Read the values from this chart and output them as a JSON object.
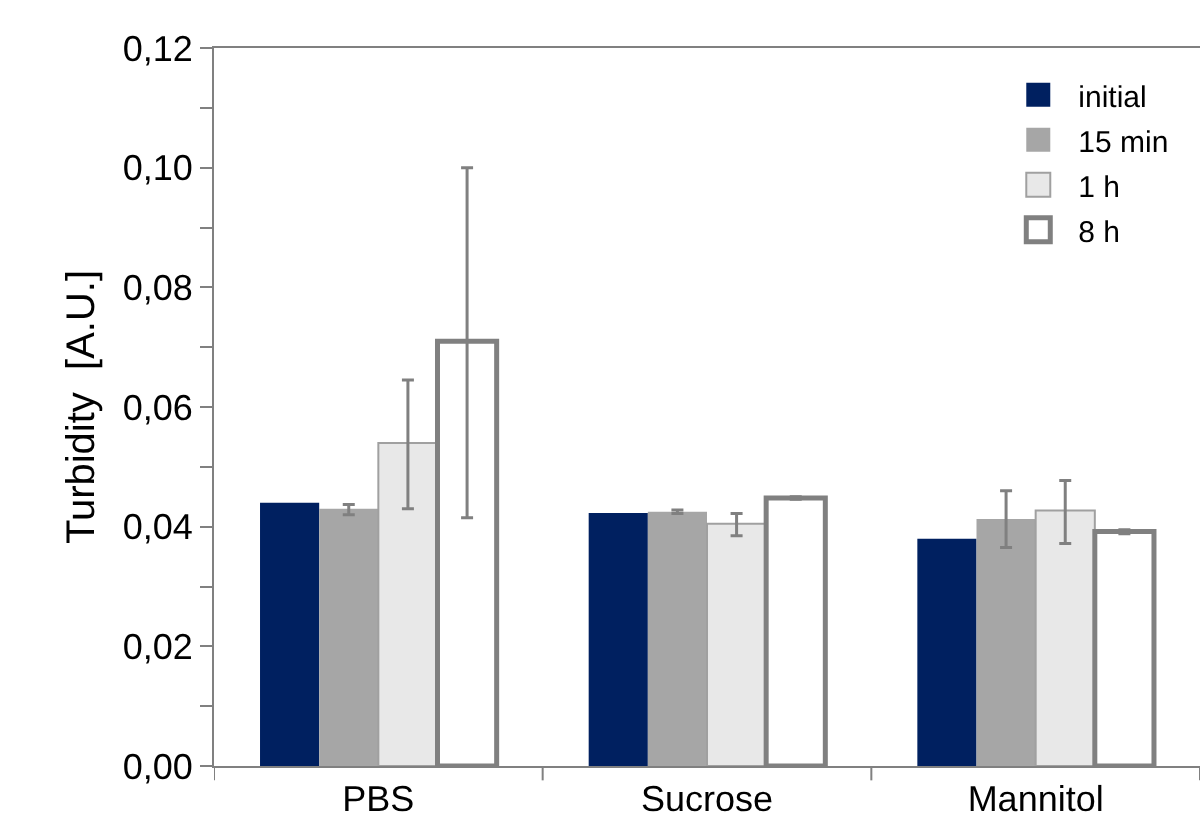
{
  "chart_data": {
    "type": "bar",
    "ylabel": "Turbidity  [A.U.]",
    "categories": [
      "PBS",
      "Sucrose",
      "Mannitol"
    ],
    "series": [
      {
        "name": "initial",
        "color": "#002060",
        "values": [
          0.044,
          0.0423,
          0.038
        ]
      },
      {
        "name": "15 min",
        "color": "#a6a6a6",
        "values": [
          0.043,
          0.0425,
          0.0413
        ],
        "errors": [
          [
            0.042,
            0.0437
          ],
          [
            0.0422,
            0.0428
          ],
          [
            0.0365,
            0.046
          ]
        ]
      },
      {
        "name": "1 h",
        "color": "#e8e8e8",
        "values": [
          0.054,
          0.0405,
          0.0427
        ],
        "errors": [
          [
            0.043,
            0.0645
          ],
          [
            0.0385,
            0.0422
          ],
          [
            0.0372,
            0.0477
          ]
        ]
      },
      {
        "name": "8 h",
        "color": "#ffffff",
        "values": [
          0.071,
          0.0448,
          0.0392
        ],
        "errors": [
          [
            0.0415,
            0.1
          ],
          [
            0.0446,
            0.045
          ],
          [
            0.0388,
            0.0395
          ]
        ]
      }
    ],
    "ylim": [
      0,
      0.12
    ],
    "yticks": [
      {
        "value": 0,
        "label": "0,00"
      },
      {
        "value": 0.01,
        "label": null
      },
      {
        "value": 0.02,
        "label": "0,02"
      },
      {
        "value": 0.03,
        "label": null
      },
      {
        "value": 0.04,
        "label": "0,04"
      },
      {
        "value": 0.05,
        "label": null
      },
      {
        "value": 0.06,
        "label": "0,06"
      },
      {
        "value": 0.07,
        "label": null
      },
      {
        "value": 0.08,
        "label": "0,08"
      },
      {
        "value": 0.09,
        "label": null
      },
      {
        "value": 0.1,
        "label": "0,10"
      },
      {
        "value": 0.11,
        "label": null
      },
      {
        "value": 0.12,
        "label": "0,12"
      }
    ],
    "grid": false,
    "legend": "top right"
  }
}
